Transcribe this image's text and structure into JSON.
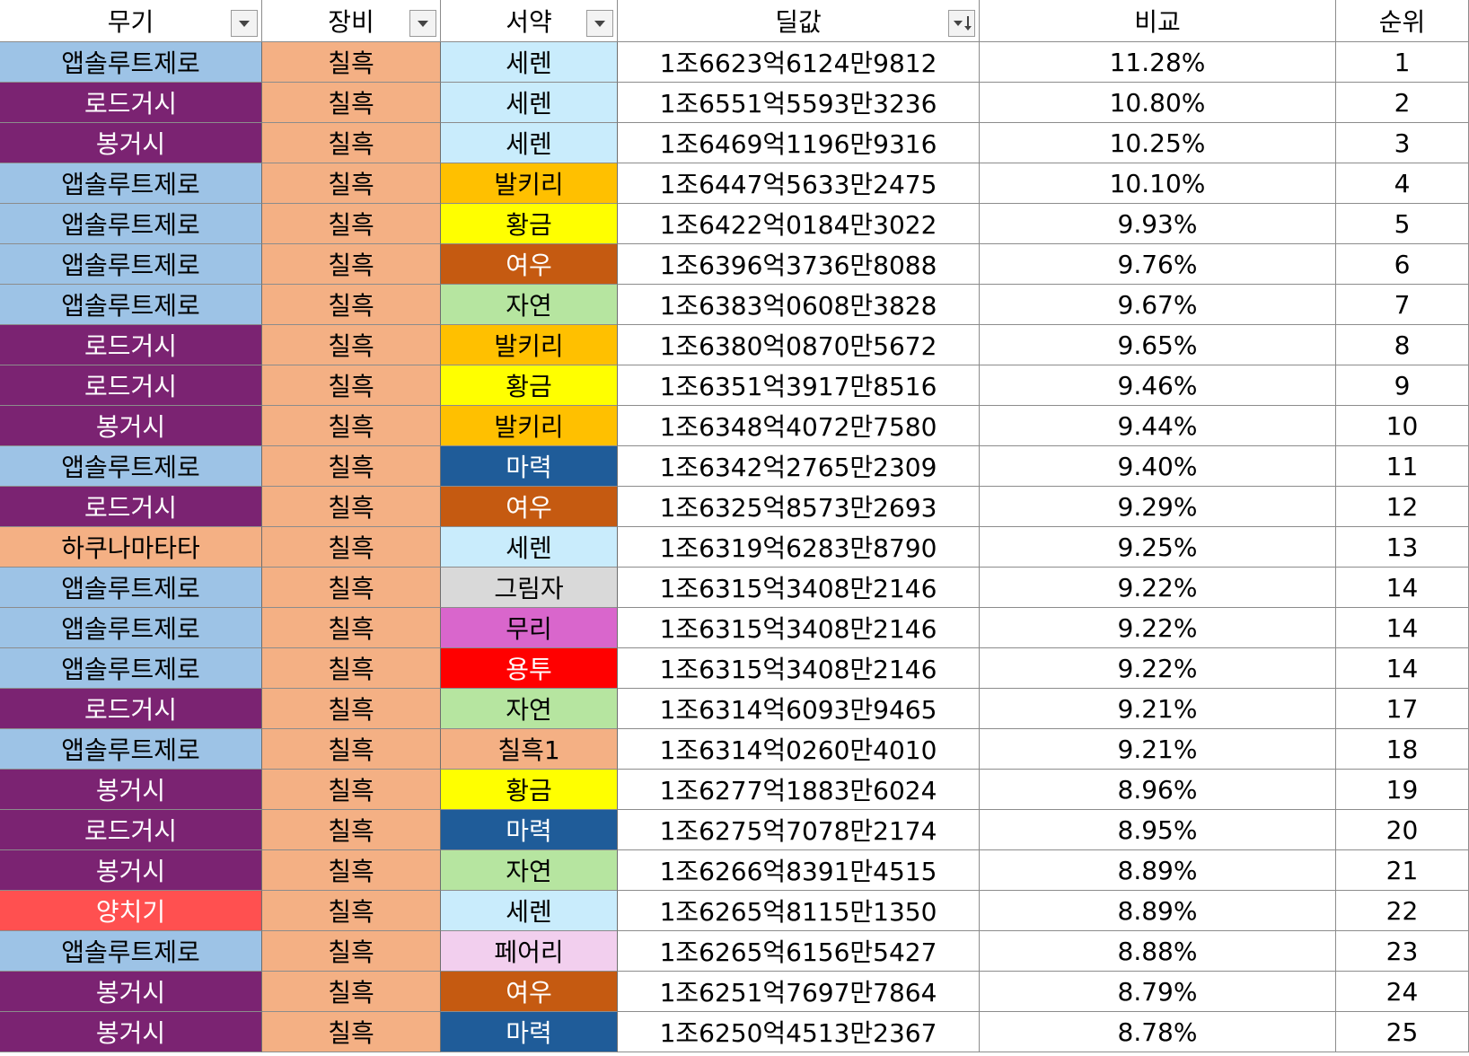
{
  "table": {
    "headers": [
      "무기",
      "장비",
      "서약",
      "딜값",
      "비교",
      "순위"
    ],
    "rows": [
      [
        "앱솔루트제로",
        "칠흑",
        "세렌",
        "1조6623억6124만9812",
        "11.28%",
        "1"
      ],
      [
        "로드거시",
        "칠흑",
        "세렌",
        "1조6551억5593만3236",
        "10.80%",
        "2"
      ],
      [
        "봉거시",
        "칠흑",
        "세렌",
        "1조6469억1196만9316",
        "10.25%",
        "3"
      ],
      [
        "앱솔루트제로",
        "칠흑",
        "발키리",
        "1조6447억5633만2475",
        "10.10%",
        "4"
      ],
      [
        "앱솔루트제로",
        "칠흑",
        "황금",
        "1조6422억0184만3022",
        "9.93%",
        "5"
      ],
      [
        "앱솔루트제로",
        "칠흑",
        "여우",
        "1조6396억3736만8088",
        "9.76%",
        "6"
      ],
      [
        "앱솔루트제로",
        "칠흑",
        "자연",
        "1조6383억0608만3828",
        "9.67%",
        "7"
      ],
      [
        "로드거시",
        "칠흑",
        "발키리",
        "1조6380억0870만5672",
        "9.65%",
        "8"
      ],
      [
        "로드거시",
        "칠흑",
        "황금",
        "1조6351억3917만8516",
        "9.46%",
        "9"
      ],
      [
        "봉거시",
        "칠흑",
        "발키리",
        "1조6348억4072만7580",
        "9.44%",
        "10"
      ],
      [
        "앱솔루트제로",
        "칠흑",
        "마력",
        "1조6342억2765만2309",
        "9.40%",
        "11"
      ],
      [
        "로드거시",
        "칠흑",
        "여우",
        "1조6325억8573만2693",
        "9.29%",
        "12"
      ],
      [
        "하쿠나마타타",
        "칠흑",
        "세렌",
        "1조6319억6283만8790",
        "9.25%",
        "13"
      ],
      [
        "앱솔루트제로",
        "칠흑",
        "그림자",
        "1조6315억3408만2146",
        "9.22%",
        "14"
      ],
      [
        "앱솔루트제로",
        "칠흑",
        "무리",
        "1조6315억3408만2146",
        "9.22%",
        "14"
      ],
      [
        "앱솔루트제로",
        "칠흑",
        "용투",
        "1조6315억3408만2146",
        "9.22%",
        "14"
      ],
      [
        "로드거시",
        "칠흑",
        "자연",
        "1조6314억6093만9465",
        "9.21%",
        "17"
      ],
      [
        "앱솔루트제로",
        "칠흑",
        "칠흑1",
        "1조6314억0260만4010",
        "9.21%",
        "18"
      ],
      [
        "봉거시",
        "칠흑",
        "황금",
        "1조6277억1883만6024",
        "8.96%",
        "19"
      ],
      [
        "로드거시",
        "칠흑",
        "마력",
        "1조6275억7078만2174",
        "8.95%",
        "20"
      ],
      [
        "봉거시",
        "칠흑",
        "자연",
        "1조6266억8391만4515",
        "8.89%",
        "21"
      ],
      [
        "양치기",
        "칠흑",
        "세렌",
        "1조6265억8115만1350",
        "8.89%",
        "22"
      ],
      [
        "앱솔루트제로",
        "칠흑",
        "페어리",
        "1조6265억6156만5427",
        "8.88%",
        "23"
      ],
      [
        "봉거시",
        "칠흑",
        "여우",
        "1조6251억7697만7864",
        "8.79%",
        "24"
      ],
      [
        "봉거시",
        "칠흑",
        "마력",
        "1조6250억4513만2367",
        "8.78%",
        "25"
      ]
    ],
    "cell_colors": [
      [
        "#9dc3e6",
        "#f4b084",
        "#c9ecfc"
      ],
      [
        "#7b2372",
        "#f4b084",
        "#c9ecfc"
      ],
      [
        "#7b2372",
        "#f4b084",
        "#c9ecfc"
      ],
      [
        "#9dc3e6",
        "#f4b084",
        "#ffc000"
      ],
      [
        "#9dc3e6",
        "#f4b084",
        "#ffff00"
      ],
      [
        "#9dc3e6",
        "#f4b084",
        "#c55a11"
      ],
      [
        "#9dc3e6",
        "#f4b084",
        "#b6e5a0"
      ],
      [
        "#7b2372",
        "#f4b084",
        "#ffc000"
      ],
      [
        "#7b2372",
        "#f4b084",
        "#ffff00"
      ],
      [
        "#7b2372",
        "#f4b084",
        "#ffc000"
      ],
      [
        "#9dc3e6",
        "#f4b084",
        "#1f5c99"
      ],
      [
        "#7b2372",
        "#f4b084",
        "#c55a11"
      ],
      [
        "#f4b084",
        "#f4b084",
        "#c9ecfc"
      ],
      [
        "#9dc3e6",
        "#f4b084",
        "#d9d9d9"
      ],
      [
        "#9dc3e6",
        "#f4b084",
        "#d966cc"
      ],
      [
        "#9dc3e6",
        "#f4b084",
        "#ff0000"
      ],
      [
        "#7b2372",
        "#f4b084",
        "#b6e5a0"
      ],
      [
        "#9dc3e6",
        "#f4b084",
        "#f4b084"
      ],
      [
        "#7b2372",
        "#f4b084",
        "#ffff00"
      ],
      [
        "#7b2372",
        "#f4b084",
        "#1f5c99"
      ],
      [
        "#7b2372",
        "#f4b084",
        "#b6e5a0"
      ],
      [
        "#ff5050",
        "#f4b084",
        "#c9ecfc"
      ],
      [
        "#9dc3e6",
        "#f4b084",
        "#f2cfee"
      ],
      [
        "#7b2372",
        "#f4b084",
        "#c55a11"
      ],
      [
        "#7b2372",
        "#f4b084",
        "#1f5c99"
      ]
    ]
  }
}
